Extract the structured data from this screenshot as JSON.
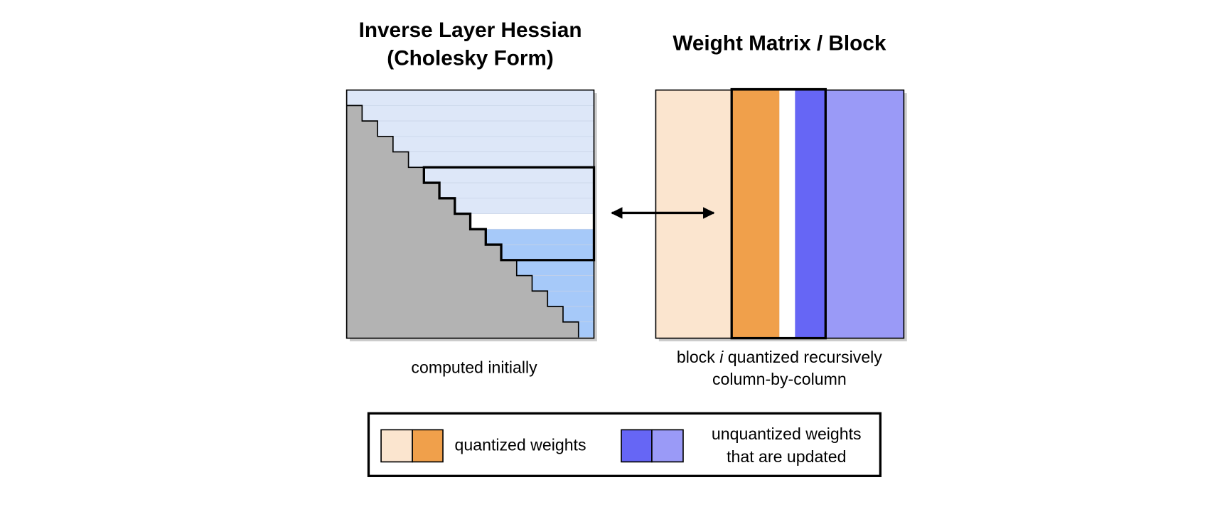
{
  "left_panel": {
    "title": [
      "Inverse Layer Hessian",
      "(Cholesky Form)"
    ],
    "caption": "computed initially"
  },
  "right_panel": {
    "title": "Weight Matrix / Block",
    "caption": {
      "before": "block ",
      "italic": "i",
      "after": " quantized recursively",
      "line2": "column-by-column"
    }
  },
  "legend": {
    "quantized": "quantized weights",
    "unquantized": [
      "unquantized weights",
      "that are updated"
    ]
  }
}
